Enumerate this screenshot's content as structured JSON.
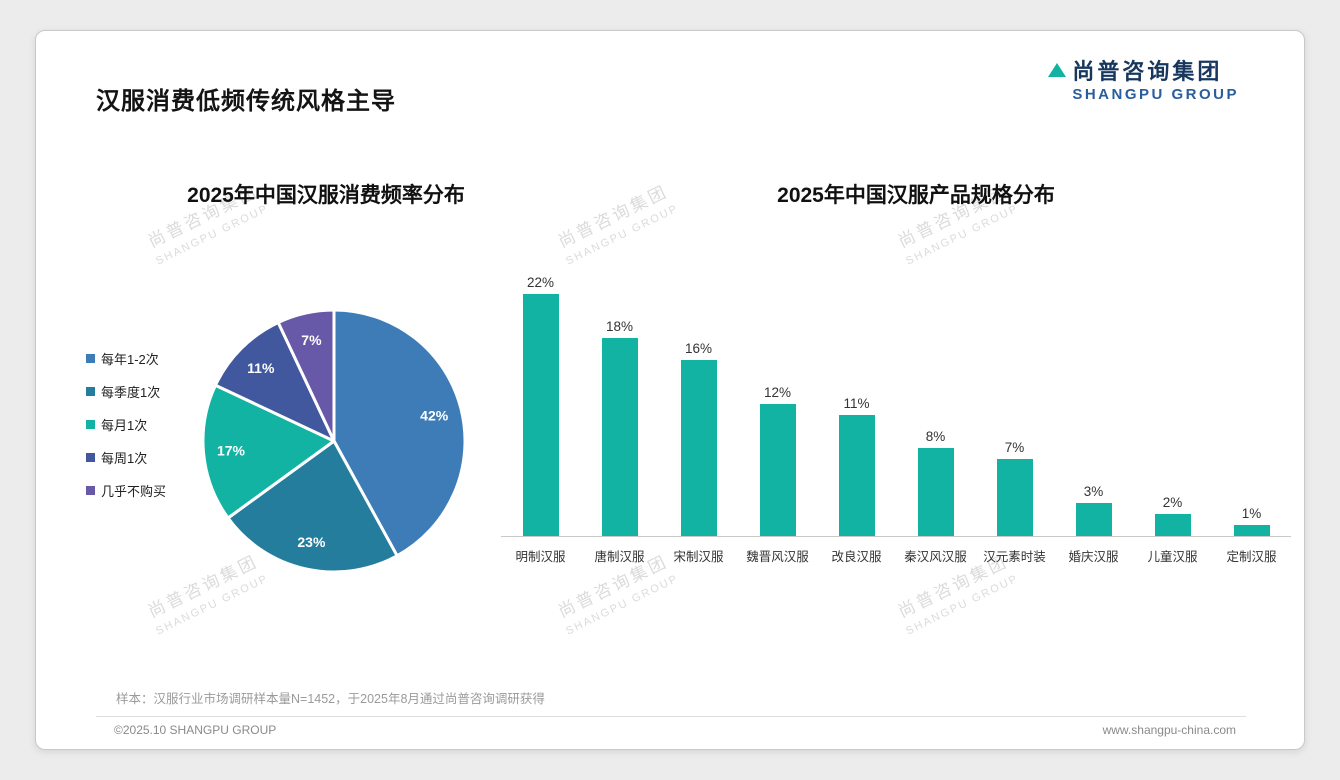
{
  "page": {
    "title": "汉服消费低频传统风格主导",
    "logo_cn": "尚普咨询集团",
    "logo_en": "SHANGPU GROUP",
    "watermark_cn": "尚普咨询集团",
    "watermark_en": "SHANGPU GROUP",
    "footnote": "样本：汉服行业市场调研样本量N=1452，于2025年8月通过尚普咨询调研获得",
    "copyright": "©2025.10 SHANGPU GROUP",
    "website": "www.shangpu-china.com"
  },
  "chart_data": [
    {
      "type": "pie",
      "title": "2025年中国汉服消费频率分布",
      "labels": [
        "每年1-2次",
        "每季度1次",
        "每月1次",
        "每周1次",
        "几乎不购买"
      ],
      "values": [
        42,
        23,
        17,
        11,
        7
      ],
      "data_labels": [
        "42%",
        "23%",
        "17%",
        "11%",
        "7%"
      ],
      "colors": [
        "#3d7cb6",
        "#257d9d",
        "#12b3a2",
        "#41589e",
        "#6858a8"
      ],
      "legend_position": "left",
      "slice_border_color": "#ffffff"
    },
    {
      "type": "bar",
      "title": "2025年中国汉服产品规格分布",
      "categories": [
        "明制汉服",
        "唐制汉服",
        "宋制汉服",
        "魏晋风汉服",
        "改良汉服",
        "秦汉风汉服",
        "汉元素时装",
        "婚庆汉服",
        "儿童汉服",
        "定制汉服"
      ],
      "values": [
        22,
        18,
        16,
        12,
        11,
        8,
        7,
        3,
        2,
        1
      ],
      "data_labels": [
        "22%",
        "18%",
        "16%",
        "12%",
        "11%",
        "8%",
        "7%",
        "3%",
        "2%",
        "1%"
      ],
      "bar_color": "#12b3a2",
      "xlabel": "",
      "ylabel": "",
      "ylim": [
        0,
        24
      ],
      "grid": false,
      "legend": false
    }
  ]
}
